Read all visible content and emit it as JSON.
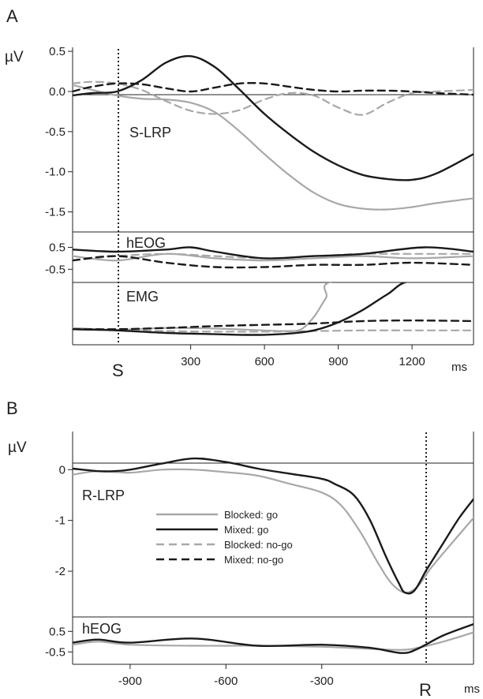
{
  "figure": {
    "panel_a_letter": "A",
    "panel_b_letter": "B"
  },
  "panel_a": {
    "y_unit": "µV",
    "main_label": "S-LRP",
    "heog_label": "hEOG",
    "emg_label": "EMG",
    "stim_marker": "S",
    "x_unit": "ms",
    "x_tick_labels": [
      "300",
      "600",
      "900",
      "1200"
    ],
    "y_tick_labels": [
      "0.5",
      "0.0",
      "-0.5",
      "-1.0",
      "-1.5"
    ],
    "heog_tick_labels": [
      "0.5",
      "-0.5"
    ]
  },
  "panel_b": {
    "y_unit": "µV",
    "main_label": "R-LRP",
    "heog_label": "hEOG",
    "resp_marker": "R",
    "x_unit": "ms",
    "x_tick_labels": [
      "-900",
      "-600",
      "-300"
    ],
    "y_tick_labels": [
      "0",
      "-1",
      "-2"
    ],
    "heog_tick_labels": [
      "0.5",
      "-0.5"
    ]
  },
  "legend": [
    {
      "label": "Blocked: go",
      "color": "#a8a8a8",
      "dashed": false
    },
    {
      "label": "Mixed: go",
      "color": "#1a1a1a",
      "dashed": false
    },
    {
      "label": "Blocked: no-go",
      "color": "#a8a8a8",
      "dashed": true
    },
    {
      "label": "Mixed: no-go",
      "color": "#1a1a1a",
      "dashed": true
    }
  ],
  "chart_data": [
    {
      "type": "line",
      "panel": "A",
      "trace": "S-LRP",
      "ylabel": "µV",
      "xlabel": "ms",
      "xlim": [
        -180,
        1450
      ],
      "ylim": [
        -1.75,
        0.55
      ],
      "grid": false,
      "x_ticks": [
        300,
        600,
        900,
        1200
      ],
      "y_ticks": [
        0.5,
        0.0,
        -0.5,
        -1.0,
        -1.5
      ],
      "series": [
        {
          "name": "Blocked: go",
          "color": "#a8a8a8",
          "dashed": false,
          "x": [
            -180,
            -100,
            0,
            100,
            200,
            300,
            400,
            500,
            600,
            700,
            800,
            900,
            1000,
            1100,
            1200,
            1300,
            1450
          ],
          "values": [
            0.08,
            0.02,
            -0.05,
            -0.09,
            -0.1,
            -0.14,
            -0.26,
            -0.5,
            -0.78,
            -1.04,
            -1.26,
            -1.4,
            -1.46,
            -1.47,
            -1.44,
            -1.39,
            -1.33
          ]
        },
        {
          "name": "Mixed: go",
          "color": "#1a1a1a",
          "dashed": false,
          "x": [
            -180,
            -100,
            0,
            100,
            200,
            300,
            400,
            500,
            600,
            700,
            800,
            900,
            1000,
            1100,
            1200,
            1300,
            1450
          ],
          "values": [
            -0.05,
            -0.02,
            0.0,
            0.14,
            0.36,
            0.44,
            0.3,
            0.02,
            -0.28,
            -0.53,
            -0.75,
            -0.92,
            -1.04,
            -1.09,
            -1.1,
            -1.02,
            -0.78
          ]
        },
        {
          "name": "Blocked: no-go",
          "color": "#a8a8a8",
          "dashed": true,
          "x": [
            -180,
            -100,
            0,
            100,
            200,
            300,
            400,
            500,
            600,
            700,
            800,
            900,
            1000,
            1100,
            1200,
            1300,
            1450
          ],
          "values": [
            0.1,
            0.12,
            0.1,
            0.02,
            -0.12,
            -0.24,
            -0.28,
            -0.23,
            -0.1,
            -0.02,
            -0.05,
            -0.2,
            -0.29,
            -0.14,
            -0.02,
            0.0,
            0.02
          ]
        },
        {
          "name": "Mixed: no-go",
          "color": "#1a1a1a",
          "dashed": true,
          "x": [
            -180,
            -100,
            0,
            100,
            200,
            300,
            400,
            500,
            600,
            700,
            800,
            900,
            1000,
            1100,
            1200,
            1300,
            1450
          ],
          "values": [
            0.0,
            0.06,
            0.1,
            0.09,
            0.04,
            0.0,
            0.05,
            0.1,
            0.1,
            0.06,
            0.02,
            0.0,
            0.01,
            0.01,
            0.0,
            -0.02,
            -0.04
          ]
        }
      ]
    },
    {
      "type": "line",
      "panel": "A",
      "trace": "hEOG",
      "xlim": [
        -180,
        1450
      ],
      "ylim": [
        -1.1,
        1.2
      ],
      "y_ticks": [
        0.5,
        -0.5
      ],
      "series": [
        {
          "name": "Blocked: go",
          "color": "#a8a8a8",
          "dashed": false,
          "x": [
            -180,
            0,
            200,
            400,
            600,
            800,
            1000,
            1200,
            1450
          ],
          "values": [
            0.1,
            -0.1,
            0.2,
            0.0,
            -0.1,
            0.0,
            0.1,
            0.0,
            0.1
          ]
        },
        {
          "name": "Mixed: go",
          "color": "#1a1a1a",
          "dashed": false,
          "x": [
            -180,
            0,
            200,
            300,
            400,
            600,
            800,
            1000,
            1250,
            1450
          ],
          "values": [
            0.4,
            0.3,
            0.4,
            0.5,
            0.3,
            0.0,
            0.1,
            0.2,
            0.5,
            0.3
          ]
        },
        {
          "name": "Blocked: no-go",
          "color": "#a8a8a8",
          "dashed": true,
          "x": [
            -180,
            0,
            200,
            400,
            600,
            800,
            1000,
            1200,
            1450
          ],
          "values": [
            -0.1,
            0.1,
            0.2,
            0.1,
            0.0,
            0.1,
            0.2,
            0.2,
            0.2
          ]
        },
        {
          "name": "Mixed: no-go",
          "color": "#1a1a1a",
          "dashed": true,
          "x": [
            -180,
            0,
            200,
            400,
            600,
            800,
            1000,
            1200,
            1450
          ],
          "values": [
            -0.1,
            0.1,
            -0.2,
            -0.4,
            -0.4,
            -0.3,
            -0.3,
            -0.2,
            -0.3
          ]
        }
      ]
    },
    {
      "type": "line",
      "panel": "A",
      "trace": "EMG",
      "xlim": [
        -180,
        1450
      ],
      "ylim": [
        0,
        10
      ],
      "series": [
        {
          "name": "Blocked: go",
          "color": "#a8a8a8",
          "dashed": false,
          "x": [
            -180,
            0,
            200,
            400,
            600,
            700,
            750,
            800,
            850,
            900,
            1450
          ],
          "values": [
            2.7,
            2.4,
            2.7,
            2.6,
            2.3,
            2.2,
            2.5,
            4.4,
            7.5,
            10.3,
            10.3
          ]
        },
        {
          "name": "Mixed: go",
          "color": "#1a1a1a",
          "dashed": false,
          "x": [
            -180,
            0,
            200,
            400,
            500,
            600,
            700,
            800,
            900,
            1000,
            1100,
            1200,
            1450
          ],
          "values": [
            2.5,
            2.3,
            1.9,
            1.7,
            1.6,
            1.6,
            1.8,
            2.3,
            3.6,
            5.6,
            8.1,
            10.3,
            10.3
          ]
        },
        {
          "name": "Blocked: no-go",
          "color": "#a8a8a8",
          "dashed": true,
          "x": [
            -180,
            0,
            200,
            400,
            600,
            800,
            1000,
            1200,
            1450
          ],
          "values": [
            2.5,
            2.4,
            2.2,
            2.1,
            2.1,
            2.2,
            2.3,
            2.3,
            2.3
          ]
        },
        {
          "name": "Mixed: no-go",
          "color": "#1a1a1a",
          "dashed": true,
          "x": [
            -180,
            0,
            200,
            400,
            600,
            800,
            1000,
            1200,
            1450
          ],
          "values": [
            2.5,
            2.5,
            2.7,
            3.0,
            3.2,
            3.4,
            3.8,
            3.9,
            3.8
          ]
        }
      ]
    },
    {
      "type": "line",
      "panel": "B",
      "trace": "R-LRP",
      "ylabel": "µV",
      "xlabel": "ms",
      "xlim": [
        -1080,
        175
      ],
      "ylim": [
        -2.9,
        0.75
      ],
      "grid": false,
      "x_ticks": [
        -900,
        -600,
        -300
      ],
      "y_ticks": [
        0,
        -1,
        -2
      ],
      "series": [
        {
          "name": "Blocked: go",
          "color": "#a8a8a8",
          "dashed": false,
          "x": [
            -1080,
            -1000,
            -900,
            -800,
            -700,
            -600,
            -500,
            -400,
            -300,
            -240,
            -180,
            -120,
            -80,
            -40,
            0,
            40,
            100,
            175
          ],
          "values": [
            -0.1,
            -0.03,
            -0.06,
            0.0,
            0.0,
            -0.05,
            -0.12,
            -0.28,
            -0.45,
            -0.7,
            -1.22,
            -1.88,
            -2.25,
            -2.42,
            -2.3,
            -1.95,
            -1.5,
            -0.95
          ]
        },
        {
          "name": "Mixed: go",
          "color": "#1a1a1a",
          "dashed": false,
          "x": [
            -1080,
            -1000,
            -950,
            -900,
            -800,
            -700,
            -600,
            -500,
            -400,
            -300,
            -260,
            -200,
            -150,
            -100,
            -60,
            -40,
            -10,
            30,
            80,
            130,
            175
          ],
          "values": [
            0.02,
            -0.03,
            -0.03,
            0.0,
            0.12,
            0.22,
            0.15,
            0.02,
            -0.08,
            -0.18,
            -0.28,
            -0.5,
            -0.98,
            -1.7,
            -2.22,
            -2.42,
            -2.38,
            -1.95,
            -1.45,
            -0.95,
            -0.58
          ]
        }
      ]
    },
    {
      "type": "line",
      "panel": "B",
      "trace": "hEOG",
      "xlim": [
        -1080,
        175
      ],
      "ylim": [
        -1.1,
        1.2
      ],
      "y_ticks": [
        0.5,
        -0.5
      ],
      "series": [
        {
          "name": "Blocked: go",
          "color": "#a8a8a8",
          "dashed": false,
          "x": [
            -1080,
            -1000,
            -900,
            -700,
            -500,
            -300,
            -150,
            -50,
            0,
            80,
            175
          ],
          "values": [
            -0.15,
            0.0,
            -0.15,
            -0.2,
            -0.2,
            -0.25,
            -0.35,
            -0.4,
            -0.3,
            0.0,
            0.45
          ]
        },
        {
          "name": "Mixed: go",
          "color": "#1a1a1a",
          "dashed": false,
          "x": [
            -1080,
            -1000,
            -900,
            -700,
            -500,
            -300,
            -150,
            -50,
            0,
            80,
            175
          ],
          "values": [
            -0.05,
            0.1,
            -0.05,
            0.15,
            -0.2,
            -0.15,
            -0.3,
            -0.55,
            -0.35,
            0.3,
            0.85
          ]
        }
      ]
    }
  ]
}
